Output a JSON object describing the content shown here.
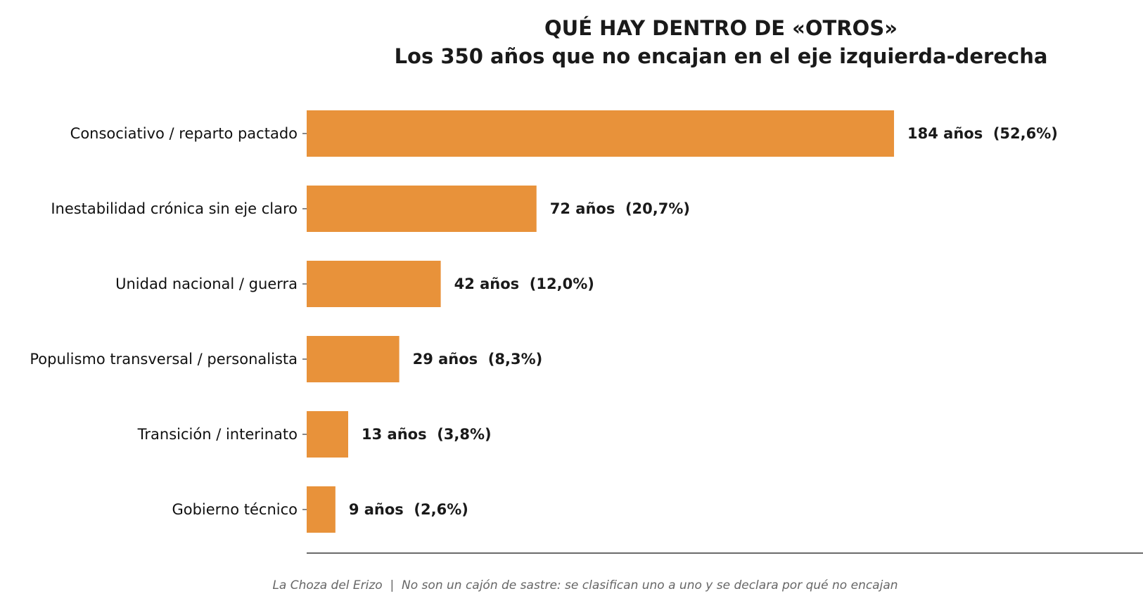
{
  "chart_data": {
    "type": "bar",
    "orientation": "horizontal",
    "title": "QUÉ HAY DENTRO DE «OTROS»",
    "subtitle": "Los 350 años que no encajan en el eje izquierda-derecha",
    "categories": [
      "Consociativo / reparto pactado",
      "Inestabilidad crónica sin eje claro",
      "Unidad nacional / guerra",
      "Populismo transversal / personalista",
      "Transición / interinato",
      "Gobierno técnico"
    ],
    "values": [
      184,
      72,
      42,
      29,
      13,
      9
    ],
    "value_labels": [
      "184 años  (52,6%)",
      "72 años  (20,7%)",
      "42 años  (12,0%)",
      "29 años  (8,3%)",
      "13 años  (3,8%)",
      "9 años  (2,6%)"
    ],
    "xlim": [
      0,
      262
    ],
    "grid": false,
    "legend": "none",
    "bar_color": "#E8923A",
    "footer": "La Choza del Erizo  |  No son un cajón de sastre: se clasifican uno a uno y se declara por qué no encajan"
  }
}
